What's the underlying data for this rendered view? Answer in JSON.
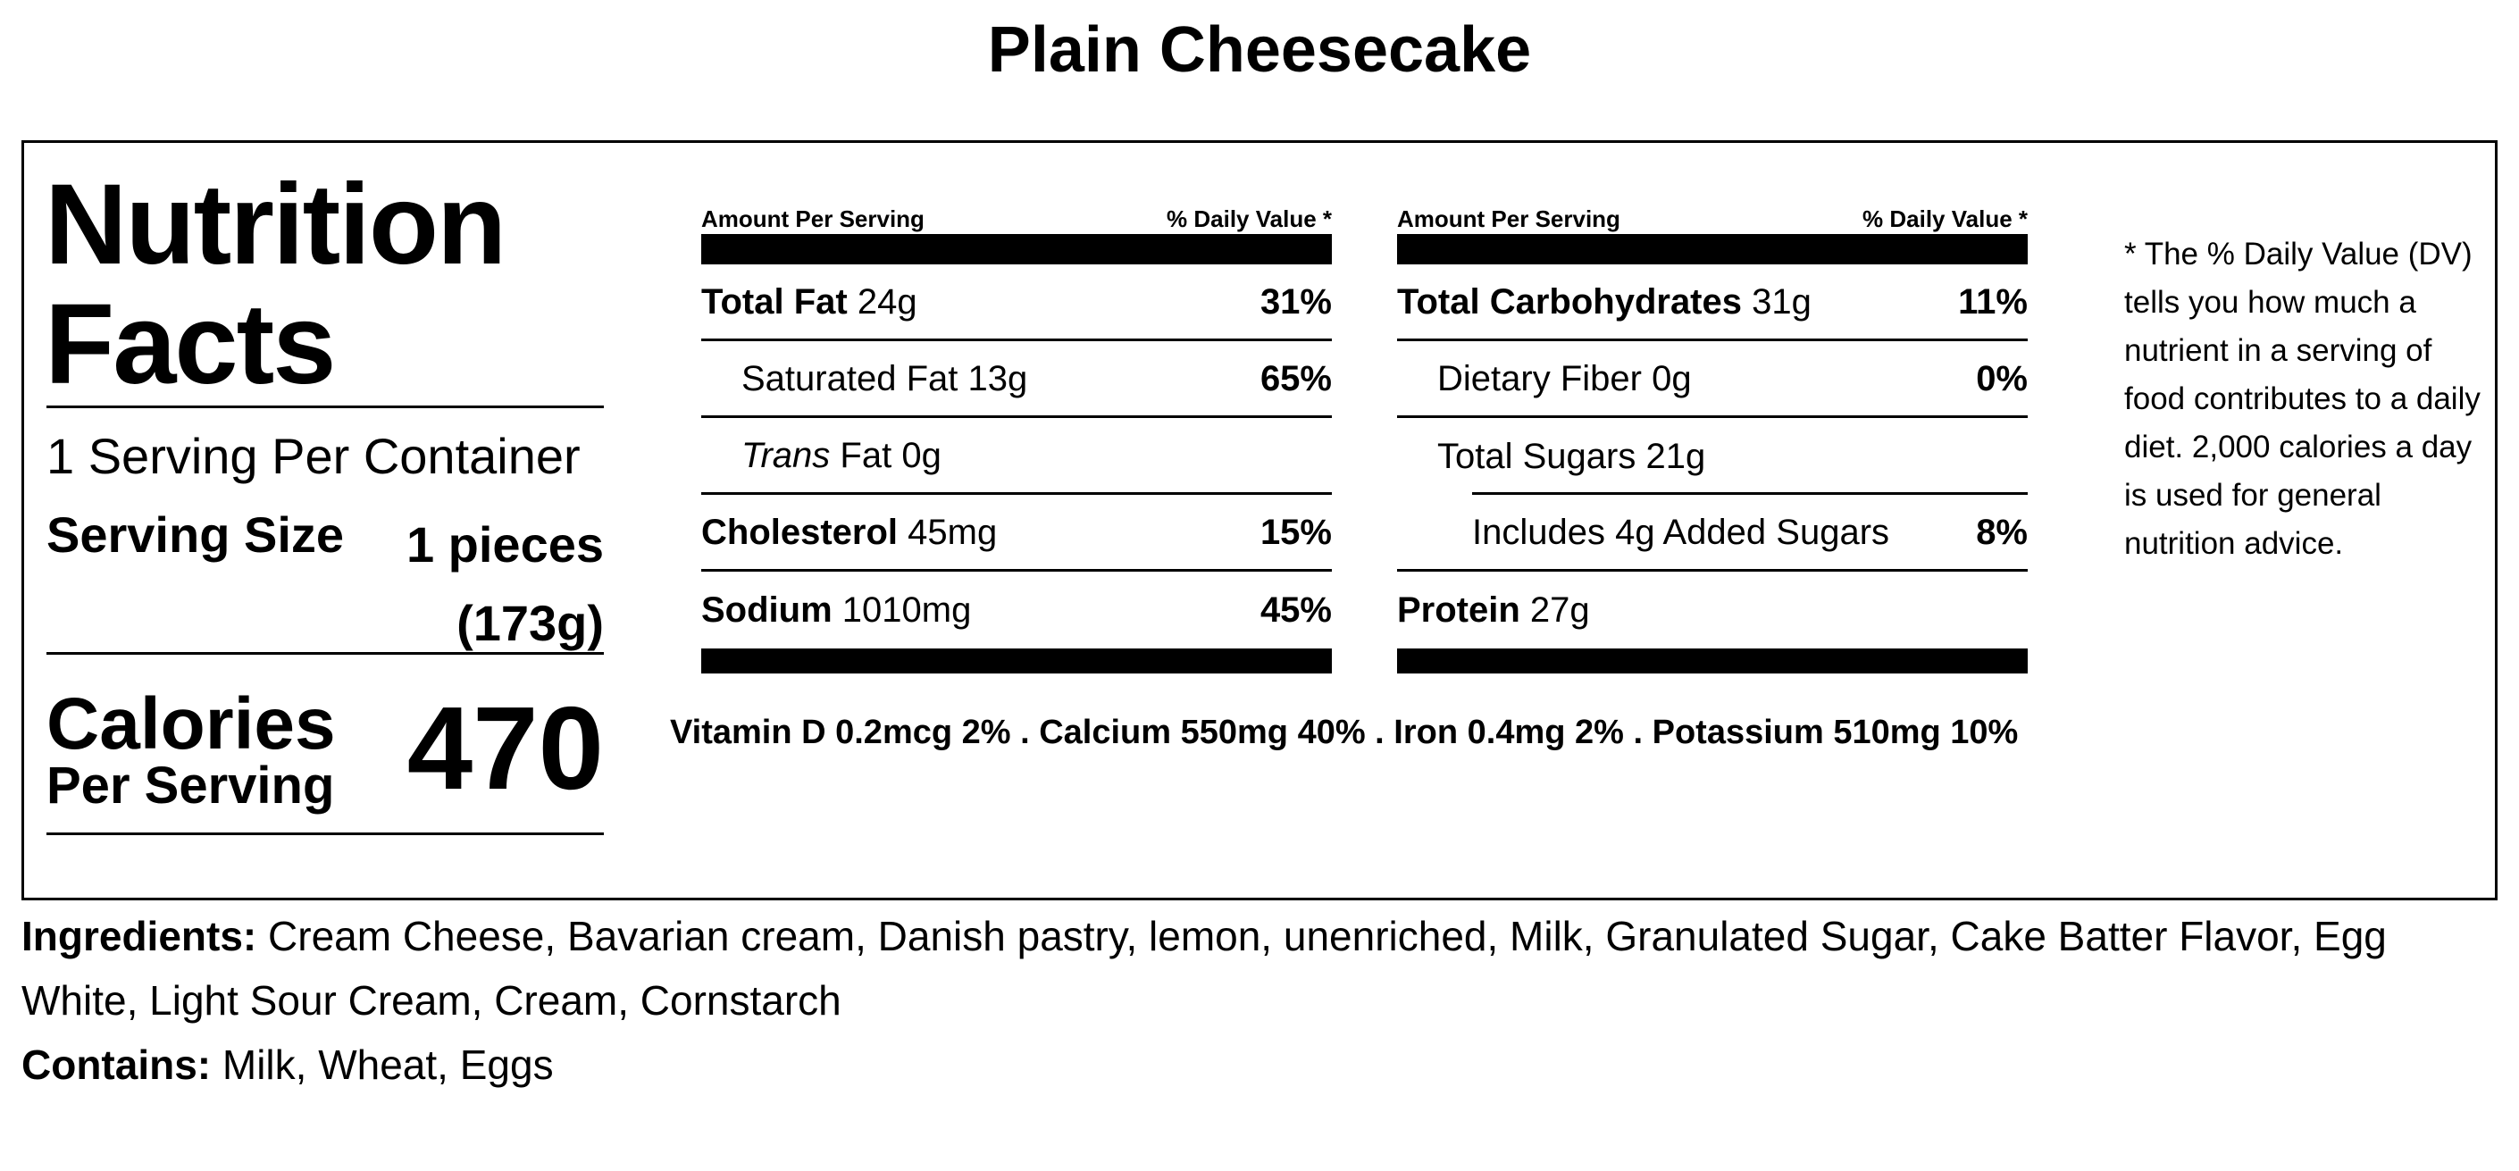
{
  "title": "Plain Cheesecake",
  "label": {
    "heading_line1": "Nutrition",
    "heading_line2": "Facts",
    "servings_per_container": "1 Serving Per Container",
    "serving_size_label": "Serving Size",
    "serving_size_value_line1": "1 pieces",
    "serving_size_value_line2": "(173g)",
    "calories_label": "Calories",
    "per_serving_label": "Per Serving",
    "calories_value": "470"
  },
  "left_table": {
    "amount_header": "Amount Per Serving",
    "dv_header": "% Daily Value *",
    "rows": [
      {
        "name": "Total Fat",
        "amount": "24g",
        "dv": "31%"
      },
      {
        "name": "Saturated Fat",
        "amount": "13g",
        "dv": "65%"
      },
      {
        "name_italic": "Trans",
        "name": "Fat",
        "amount": "0g",
        "dv": ""
      },
      {
        "name": "Cholesterol",
        "amount": "45mg",
        "dv": "15%"
      },
      {
        "name": "Sodium",
        "amount": "1010mg",
        "dv": "45%"
      }
    ]
  },
  "right_table": {
    "amount_header": "Amount Per Serving",
    "dv_header": "% Daily Value *",
    "rows": [
      {
        "name": "Total Carbohydrates",
        "amount": "31g",
        "dv": "11%"
      },
      {
        "name": "Dietary Fiber",
        "amount": "0g",
        "dv": "0%"
      },
      {
        "name": "Total Sugars",
        "amount": "21g",
        "dv": ""
      },
      {
        "name": "Includes 4g Added Sugars",
        "amount": "",
        "dv": "8%"
      },
      {
        "name": "Protein",
        "amount": "27g",
        "dv": ""
      }
    ]
  },
  "vitamins_line": "Vitamin D 0.2mcg 2% . Calcium 550mg 40% . Iron 0.4mg 2% . Potassium 510mg 10%",
  "dv_footnote": "* The % Daily Value (DV) tells you how much a nutrient in a serving of food contributes to a daily diet. 2,000 calories a day is used for general nutrition advice.",
  "ingredients": {
    "label": "Ingredients:",
    "text": "Cream Cheese, Bavarian cream, Danish pastry, lemon, unenriched, Milk, Granulated Sugar, Cake Batter Flavor, Egg White, Light Sour Cream, Cream, Cornstarch"
  },
  "contains": {
    "label": "Contains:",
    "text": "Milk, Wheat, Eggs"
  }
}
